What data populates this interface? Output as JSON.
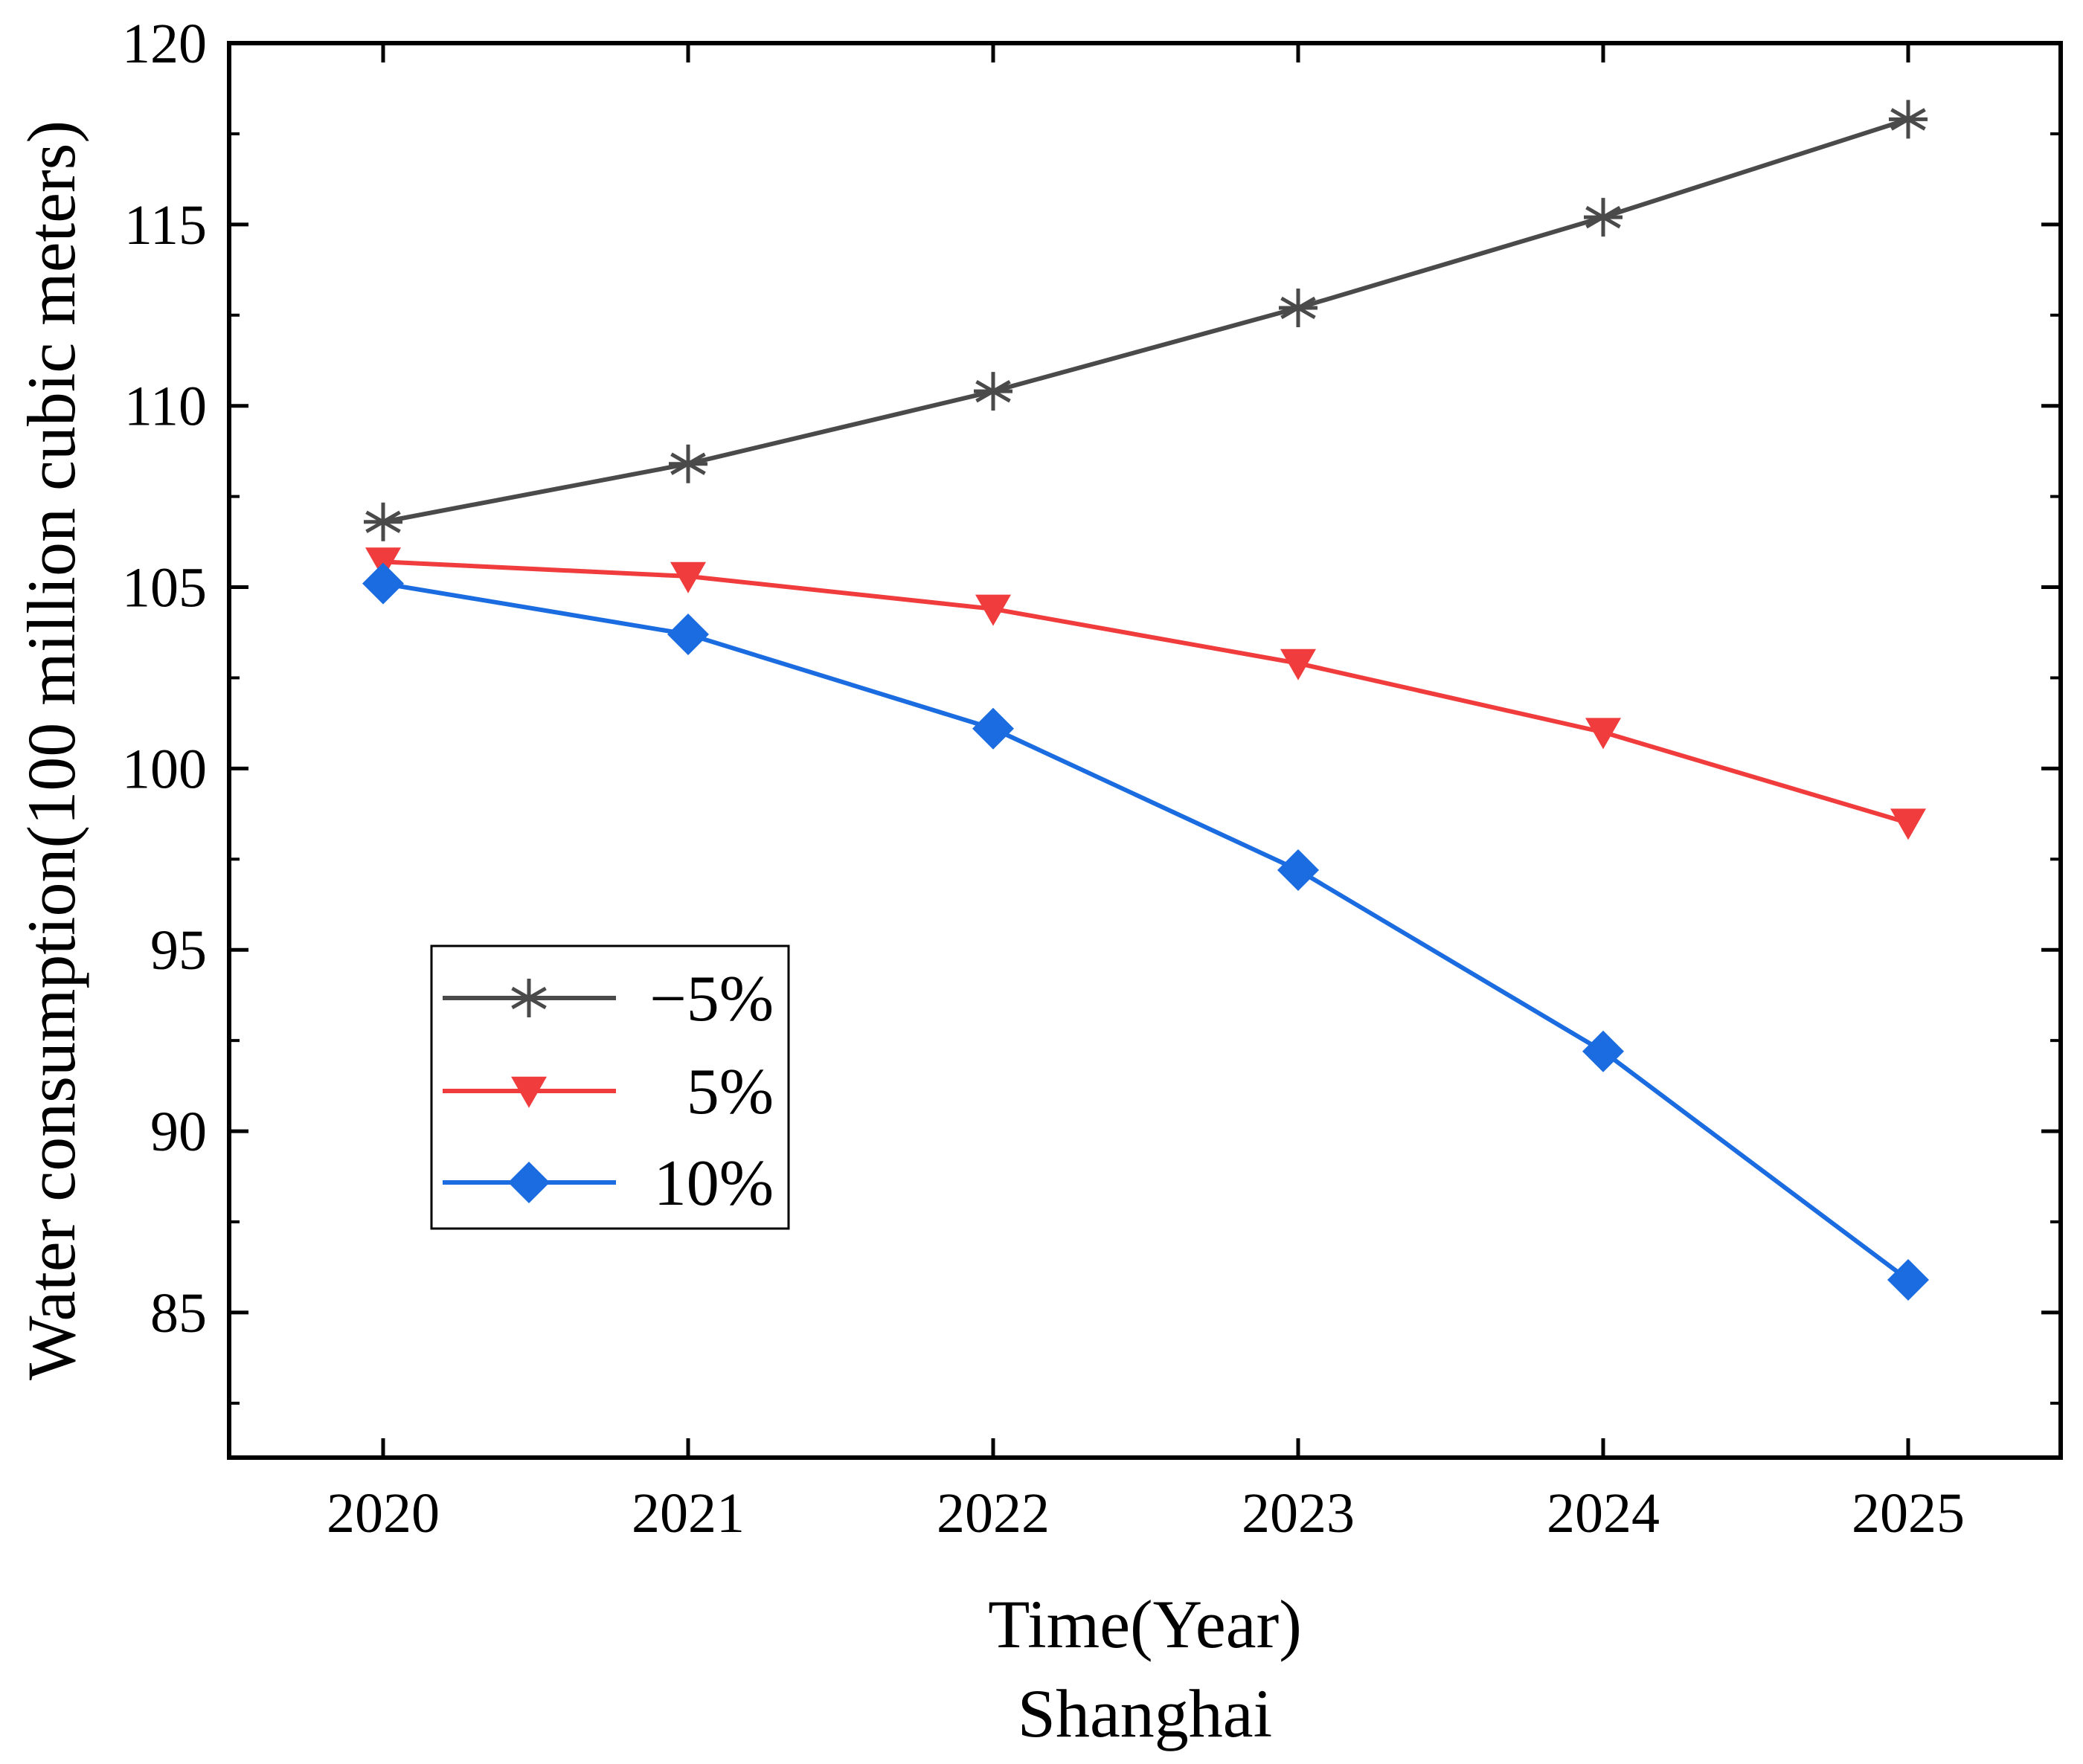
{
  "chart_data": {
    "type": "line",
    "title": "",
    "subtitle": "Shanghai",
    "xlabel": "Time(Year)",
    "ylabel": "Water consumption(100 million cubic meters)",
    "categories": [
      "2020",
      "2021",
      "2022",
      "2023",
      "2024",
      "2025"
    ],
    "ylim": [
      81,
      120
    ],
    "yticks": [
      "85",
      "90",
      "95",
      "100",
      "105",
      "110",
      "115",
      "120"
    ],
    "grid": false,
    "legend_position": "center-left",
    "series": [
      {
        "name": "−5%",
        "marker": "asterisk",
        "color": "#4a4a4a",
        "values": [
          106.8,
          108.4,
          110.4,
          112.7,
          115.2,
          117.9
        ]
      },
      {
        "name": "5%",
        "marker": "triangle-down",
        "color": "#f03c3c",
        "values": [
          105.7,
          105.3,
          104.4,
          102.9,
          101.0,
          98.5
        ]
      },
      {
        "name": "10%",
        "marker": "diamond",
        "color": "#1a6ce0",
        "values": [
          105.1,
          103.7,
          101.1,
          97.2,
          92.2,
          85.9
        ]
      }
    ]
  }
}
